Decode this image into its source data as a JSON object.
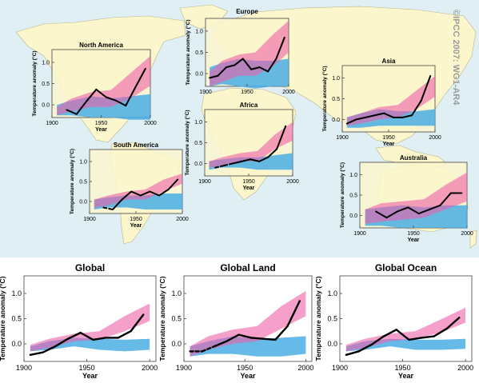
{
  "credit": "©IPCC 2007: WG1-AR4",
  "colors": {
    "ocean": "#dfeff4",
    "land": "#fbf6cc",
    "natural_band": "#4aaee4",
    "combined_band": "#ee5fa8",
    "observations": "#000000"
  },
  "legend_note": "",
  "chart_data": [
    {
      "type": "line",
      "region": "north-america",
      "title": "North America",
      "xlabel": "Year",
      "ylabel": "Temperature anomaly (°C)",
      "xlim": [
        1900,
        2000
      ],
      "ylim": [
        -0.3,
        1.3
      ],
      "xticks": [
        "1900",
        "1950",
        "2000"
      ],
      "yticks": [
        "0.0",
        "0.5",
        "1.0"
      ],
      "series": [
        {
          "x": [
            1915,
            1925,
            1935,
            1945,
            1955,
            1965,
            1975,
            1985,
            1995
          ],
          "y": [
            -0.12,
            -0.22,
            0.08,
            0.36,
            0.18,
            0.1,
            -0.02,
            0.42,
            0.85
          ]
        }
      ],
      "bands": [
        {
          "x": [
            1905,
            1920,
            1940,
            1960,
            1980,
            2000
          ],
          "low": [
            -0.25,
            -0.25,
            -0.3,
            -0.3,
            -0.35,
            -0.35
          ],
          "high": [
            0.0,
            0.1,
            0.2,
            0.15,
            0.2,
            0.25
          ]
        },
        {
          "x": [
            1905,
            1920,
            1940,
            1960,
            1980,
            2000
          ],
          "low": [
            -0.25,
            -0.15,
            -0.05,
            -0.05,
            0.15,
            0.45
          ],
          "high": [
            -0.05,
            0.15,
            0.3,
            0.35,
            0.75,
            1.15
          ]
        }
      ],
      "broken_segments": []
    },
    {
      "type": "line",
      "region": "europe",
      "title": "Europe",
      "xlabel": "",
      "ylabel": "Temperature anomaly (°C)",
      "xlim": [
        1900,
        2000
      ],
      "ylim": [
        -0.3,
        1.3
      ],
      "xticks": [
        "1900",
        "1950",
        "2000"
      ],
      "yticks": [
        "0.0",
        "0.5",
        "1.0"
      ],
      "series": [
        {
          "x": [
            1905,
            1915,
            1925,
            1935,
            1945,
            1955,
            1965,
            1975,
            1985,
            1995
          ],
          "y": [
            -0.1,
            -0.05,
            0.15,
            0.2,
            0.35,
            0.1,
            0.15,
            0.05,
            0.35,
            0.85
          ]
        }
      ],
      "bands": [
        {
          "x": [
            1905,
            1920,
            1940,
            1960,
            1980,
            2000
          ],
          "low": [
            -0.3,
            -0.25,
            -0.3,
            -0.35,
            -0.3,
            -0.3
          ],
          "high": [
            0.15,
            0.25,
            0.35,
            0.3,
            0.3,
            0.35
          ]
        },
        {
          "x": [
            1905,
            1920,
            1940,
            1960,
            1980,
            2000
          ],
          "low": [
            -0.3,
            -0.2,
            -0.05,
            -0.05,
            0.15,
            0.5
          ],
          "high": [
            0.05,
            0.3,
            0.45,
            0.5,
            0.9,
            1.25
          ]
        }
      ],
      "broken_segments": []
    },
    {
      "type": "line",
      "region": "asia",
      "title": "Asia",
      "xlabel": "Year",
      "ylabel": "Temperature anomaly (°C)",
      "xlim": [
        1900,
        2000
      ],
      "ylim": [
        -0.3,
        1.3
      ],
      "xticks": [
        "1900",
        "1950",
        "2000"
      ],
      "yticks": [
        "0.0",
        "0.5",
        "1.0"
      ],
      "series": [
        {
          "x": [
            1905,
            1915,
            1925,
            1935,
            1945,
            1955,
            1965,
            1975,
            1985,
            1995
          ],
          "y": [
            -0.1,
            0.0,
            0.05,
            0.1,
            0.15,
            0.05,
            0.05,
            0.1,
            0.45,
            1.05
          ]
        }
      ],
      "bands": [
        {
          "x": [
            1905,
            1920,
            1940,
            1960,
            1980,
            2000
          ],
          "low": [
            -0.2,
            -0.2,
            -0.15,
            -0.15,
            -0.15,
            -0.15
          ],
          "high": [
            0.05,
            0.15,
            0.25,
            0.2,
            0.2,
            0.25
          ]
        },
        {
          "x": [
            1905,
            1920,
            1940,
            1960,
            1980,
            2000
          ],
          "low": [
            -0.15,
            -0.1,
            0.0,
            0.05,
            0.25,
            0.55
          ],
          "high": [
            0.05,
            0.15,
            0.3,
            0.35,
            0.7,
            1.05
          ]
        }
      ],
      "broken_segments": []
    },
    {
      "type": "line",
      "region": "africa",
      "title": "Africa",
      "xlabel": "Year",
      "ylabel": "Temperature anomaly (°C)",
      "xlim": [
        1900,
        2000
      ],
      "ylim": [
        -0.3,
        1.3
      ],
      "xticks": [
        "1900",
        "1950",
        "2000"
      ],
      "yticks": [
        "0.0",
        "0.5",
        "1.0"
      ],
      "series": [
        {
          "x": [
            1912,
            1922,
            1932,
            1942,
            1952,
            1962,
            1972,
            1982,
            1992
          ],
          "y": [
            -0.1,
            -0.05,
            0.0,
            0.05,
            0.1,
            0.05,
            0.15,
            0.35,
            0.9
          ]
        }
      ],
      "bands": [
        {
          "x": [
            1905,
            1920,
            1940,
            1960,
            1980,
            2000
          ],
          "low": [
            -0.15,
            -0.1,
            -0.1,
            -0.15,
            -0.15,
            -0.15
          ],
          "high": [
            0.05,
            0.1,
            0.15,
            0.15,
            0.2,
            0.25
          ]
        },
        {
          "x": [
            1905,
            1920,
            1940,
            1960,
            1980,
            2000
          ],
          "low": [
            -0.1,
            -0.05,
            0.05,
            0.05,
            0.35,
            0.55
          ],
          "high": [
            0.05,
            0.15,
            0.25,
            0.3,
            0.7,
            1.0
          ]
        }
      ],
      "broken_segments": [
        [
          0,
          2
        ]
      ]
    },
    {
      "type": "line",
      "region": "south-america",
      "title": "South America",
      "xlabel": "Year",
      "ylabel": "Temperature anomaly (°C)",
      "xlim": [
        1900,
        2000
      ],
      "ylim": [
        -0.3,
        1.3
      ],
      "xticks": [
        "1900",
        "1950",
        "2000"
      ],
      "yticks": [
        "0.0",
        "0.5",
        "1.0"
      ],
      "series": [
        {
          "x": [
            1915,
            1925,
            1935,
            1945,
            1955,
            1965,
            1975,
            1985,
            1995
          ],
          "y": [
            -0.15,
            -0.2,
            0.05,
            0.25,
            0.15,
            0.25,
            0.15,
            0.3,
            0.55
          ]
        }
      ],
      "bands": [
        {
          "x": [
            1905,
            1920,
            1940,
            1960,
            1980,
            2000
          ],
          "low": [
            -0.2,
            -0.15,
            -0.15,
            -0.2,
            -0.2,
            -0.2
          ],
          "high": [
            0.05,
            0.1,
            0.15,
            0.15,
            0.2,
            0.2
          ]
        },
        {
          "x": [
            1905,
            1920,
            1940,
            1960,
            1980,
            2000
          ],
          "low": [
            -0.15,
            -0.1,
            0.05,
            0.05,
            0.25,
            0.45
          ],
          "high": [
            0.05,
            0.15,
            0.25,
            0.3,
            0.55,
            0.7
          ]
        }
      ],
      "broken_segments": [
        [
          0,
          1
        ]
      ]
    },
    {
      "type": "line",
      "region": "australia",
      "title": "Australia",
      "xlabel": "Year",
      "ylabel": "Temperature anomaly (°C)",
      "xlim": [
        1900,
        2000
      ],
      "ylim": [
        -0.3,
        1.3
      ],
      "xticks": [
        "1900",
        "1950",
        "2000"
      ],
      "yticks": [
        "0.0",
        "0.5",
        "1.0"
      ],
      "series": [
        {
          "x": [
            1915,
            1925,
            1935,
            1945,
            1955,
            1965,
            1975,
            1985,
            1995
          ],
          "y": [
            0.1,
            -0.05,
            0.1,
            0.2,
            0.05,
            0.15,
            0.25,
            0.55,
            0.55
          ]
        }
      ],
      "bands": [
        {
          "x": [
            1905,
            1920,
            1940,
            1960,
            1980,
            2000
          ],
          "low": [
            -0.25,
            -0.25,
            -0.3,
            -0.3,
            -0.3,
            -0.3
          ],
          "high": [
            0.15,
            0.2,
            0.25,
            0.2,
            0.25,
            0.25
          ]
        },
        {
          "x": [
            1905,
            1920,
            1940,
            1960,
            1980,
            2000
          ],
          "low": [
            -0.2,
            -0.15,
            -0.1,
            -0.05,
            0.15,
            0.35
          ],
          "high": [
            0.15,
            0.3,
            0.35,
            0.4,
            0.75,
            1.05
          ]
        }
      ],
      "broken_segments": []
    },
    {
      "type": "line",
      "region": "global",
      "title": "Global",
      "xlabel": "Year",
      "ylabel": "Temperature anomaly (°C)",
      "xlim": [
        1900,
        2005
      ],
      "ylim": [
        -0.35,
        1.35
      ],
      "xticks": [
        "1900",
        "1950",
        "2000"
      ],
      "yticks": [
        "0.0",
        "0.5",
        "1.0"
      ],
      "series": [
        {
          "x": [
            1905,
            1915,
            1925,
            1935,
            1945,
            1955,
            1965,
            1975,
            1985,
            1995
          ],
          "y": [
            -0.22,
            -0.17,
            -0.05,
            0.1,
            0.22,
            0.08,
            0.12,
            0.12,
            0.25,
            0.58
          ]
        }
      ],
      "bands": [
        {
          "x": [
            1905,
            1920,
            1940,
            1960,
            1980,
            2000
          ],
          "low": [
            -0.15,
            -0.12,
            -0.05,
            -0.12,
            -0.15,
            -0.12
          ],
          "high": [
            -0.05,
            0.05,
            0.12,
            0.1,
            0.08,
            0.1
          ]
        },
        {
          "x": [
            1905,
            1920,
            1940,
            1960,
            1980,
            2000
          ],
          "low": [
            -0.15,
            -0.08,
            0.05,
            0.08,
            0.25,
            0.45
          ],
          "high": [
            -0.02,
            0.1,
            0.2,
            0.25,
            0.55,
            0.8
          ]
        }
      ],
      "broken_segments": []
    },
    {
      "type": "line",
      "region": "global-land",
      "title": "Global Land",
      "xlabel": "Year",
      "ylabel": "Temperature anomaly (°C)",
      "xlim": [
        1900,
        2005
      ],
      "ylim": [
        -0.35,
        1.35
      ],
      "xticks": [
        "1900",
        "1950",
        "2000"
      ],
      "yticks": [
        "0.0",
        "0.5",
        "1.0"
      ],
      "series": [
        {
          "x": [
            1905,
            1915,
            1925,
            1935,
            1945,
            1955,
            1965,
            1975,
            1985,
            1995
          ],
          "y": [
            -0.15,
            -0.15,
            -0.05,
            0.05,
            0.18,
            0.12,
            0.1,
            0.08,
            0.35,
            0.85
          ]
        }
      ],
      "bands": [
        {
          "x": [
            1905,
            1920,
            1940,
            1960,
            1980,
            2000
          ],
          "low": [
            -0.25,
            -0.2,
            -0.2,
            -0.25,
            -0.25,
            -0.2
          ],
          "high": [
            -0.05,
            0.05,
            0.15,
            0.1,
            0.12,
            0.15
          ]
        },
        {
          "x": [
            1905,
            1920,
            1940,
            1960,
            1980,
            2000
          ],
          "low": [
            -0.25,
            -0.12,
            0.0,
            0.05,
            0.3,
            0.55
          ],
          "high": [
            -0.05,
            0.15,
            0.28,
            0.35,
            0.75,
            1.05
          ]
        }
      ],
      "broken_segments": [
        [
          0,
          2
        ]
      ]
    },
    {
      "type": "line",
      "region": "global-ocean",
      "title": "Global Ocean",
      "xlabel": "Year",
      "ylabel": "Temperature anomaly (°C)",
      "xlim": [
        1900,
        2005
      ],
      "ylim": [
        -0.35,
        1.35
      ],
      "xticks": [
        "1900",
        "1950",
        "2000"
      ],
      "yticks": [
        "0.0",
        "0.5",
        "1.0"
      ],
      "series": [
        {
          "x": [
            1905,
            1915,
            1925,
            1935,
            1945,
            1955,
            1965,
            1975,
            1985,
            1995
          ],
          "y": [
            -0.22,
            -0.15,
            -0.02,
            0.15,
            0.28,
            0.08,
            0.12,
            0.15,
            0.3,
            0.52
          ]
        }
      ],
      "bands": [
        {
          "x": [
            1905,
            1920,
            1940,
            1960,
            1980,
            2000
          ],
          "low": [
            -0.15,
            -0.12,
            -0.05,
            -0.12,
            -0.12,
            -0.1
          ],
          "high": [
            -0.05,
            0.05,
            0.1,
            0.08,
            0.08,
            0.1
          ]
        },
        {
          "x": [
            1905,
            1920,
            1940,
            1960,
            1980,
            2000
          ],
          "low": [
            -0.15,
            -0.08,
            0.05,
            0.1,
            0.22,
            0.42
          ],
          "high": [
            -0.02,
            0.1,
            0.2,
            0.25,
            0.48,
            0.72
          ]
        }
      ],
      "broken_segments": []
    }
  ]
}
